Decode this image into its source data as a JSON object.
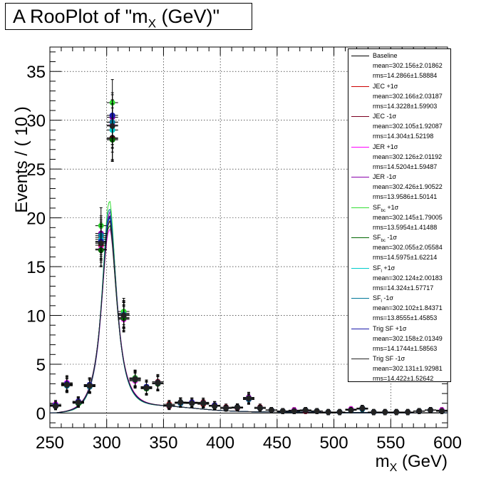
{
  "chart_data": {
    "type": "line",
    "title": "A RooPlot of \"m",
    "title_sub": "X",
    "title_tail": " (GeV)\"",
    "xlabel": "m",
    "xlabel_sub": "X",
    "xlabel_tail": " (GeV)",
    "ylabel": "Events / ( 10 )",
    "xlim": [
      250,
      600
    ],
    "ylim": [
      -1.5,
      37.5
    ],
    "xticks": [
      "250",
      "300",
      "350",
      "400",
      "450",
      "500",
      "550",
      "600"
    ],
    "yticks": [
      "0",
      "5",
      "10",
      "15",
      "20",
      "25",
      "30",
      "35"
    ],
    "grid": true,
    "legend_position": "top-right",
    "legend": [
      {
        "label": "Baseline",
        "mean": "mean=302.156±2.01862",
        "rms": "rms=14.2866±1.58884",
        "color": "#000000"
      },
      {
        "label": "JEC +1σ",
        "mean": "mean=302.166±2.03187",
        "rms": "rms=14.3228±1.59903",
        "color": "#cc0000"
      },
      {
        "label": "JEC -1σ",
        "mean": "mean=302.105±1.92087",
        "rms": "rms=14.304±1.52198",
        "color": "#7a0020"
      },
      {
        "label": "JER +1σ",
        "mean": "mean=302.126±2.01192",
        "rms": "rms=14.5204±1.59487",
        "color": "#ff00ff"
      },
      {
        "label": "JER -1σ",
        "mean": "mean=302.426±1.90522",
        "rms": "rms=13.9586±1.50141",
        "color": "#8800aa"
      },
      {
        "label": "SF",
        "label_sub": "bc",
        "label_tail": " +1σ",
        "mean": "mean=302.145±1.79005",
        "rms": "rms=13.5954±1.41488",
        "color": "#33dd33"
      },
      {
        "label": "SF",
        "label_sub": "bc",
        "label_tail": " -1σ",
        "mean": "mean=302.055±2.05584",
        "rms": "rms=14.5975±1.62214",
        "color": "#006600"
      },
      {
        "label": "SF",
        "label_sub": "l",
        "label_tail": " +1σ",
        "mean": "mean=302.124±2.00183",
        "rms": "rms=14.324±1.57717",
        "color": "#00cccc"
      },
      {
        "label": "SF",
        "label_sub": "l",
        "label_tail": " -1σ",
        "mean": "mean=302.102±1.84371",
        "rms": "rms=13.8555±1.45853",
        "color": "#007799"
      },
      {
        "label": "Trig SF +1σ",
        "mean": "mean=302.158±2.01349",
        "rms": "rms=14.1744±1.58563",
        "color": "#1a1aaa"
      },
      {
        "label": "Trig SF -1σ",
        "mean": "mean=302.131±1.92981",
        "rms": "rms=14.422±1.52642",
        "color": "#222222"
      }
    ],
    "x": [
      255,
      265,
      275,
      285,
      295,
      305,
      315,
      325,
      335,
      345,
      355,
      365,
      375,
      385,
      395,
      405,
      415,
      425,
      435,
      445,
      455,
      465,
      475,
      485,
      495,
      505,
      515,
      525,
      535,
      545,
      555,
      565,
      575,
      585,
      595
    ],
    "series": [
      {
        "color": "#000000",
        "values": [
          0.7,
          2.9,
          1.1,
          2.8,
          17.5,
          28.2,
          10.0,
          3.5,
          2.6,
          3.1,
          0.8,
          1.1,
          1.0,
          1.0,
          0.7,
          0.5,
          0.6,
          1.5,
          0.5,
          0.3,
          0.2,
          0.2,
          0.3,
          0.2,
          0.1,
          0.1,
          0.3,
          0.5,
          0.1,
          0.1,
          0.1,
          0.1,
          0.2,
          0.3,
          0.2
        ],
        "peak": 19.7,
        "mean": 302.156,
        "sigma": 8.2
      },
      {
        "color": "#cc0000",
        "values": [
          0.8,
          3.0,
          1.2,
          2.9,
          18.0,
          29.8,
          9.8,
          3.4,
          2.7,
          3.0,
          0.9,
          1.0,
          1.1,
          0.9,
          0.8,
          0.5,
          0.6,
          1.4,
          0.5,
          0.3,
          0.2,
          0.2,
          0.3,
          0.2,
          0.1,
          0.1,
          0.3,
          0.4,
          0.1,
          0.1,
          0.1,
          0.1,
          0.2,
          0.3,
          0.2
        ],
        "peak": 19.4,
        "mean": 302.166,
        "sigma": 8.3
      },
      {
        "color": "#7a0020",
        "values": [
          0.7,
          2.8,
          1.0,
          2.7,
          17.2,
          28.1,
          10.2,
          3.6,
          2.5,
          3.2,
          0.7,
          1.1,
          1.0,
          1.1,
          0.7,
          0.6,
          0.5,
          1.5,
          0.6,
          0.3,
          0.2,
          0.2,
          0.2,
          0.2,
          0.1,
          0.1,
          0.3,
          0.5,
          0.1,
          0.1,
          0.1,
          0.1,
          0.2,
          0.3,
          0.2
        ],
        "peak": 19.9,
        "mean": 302.105,
        "sigma": 8.1
      },
      {
        "color": "#ff00ff",
        "values": [
          0.9,
          3.1,
          1.2,
          2.9,
          16.8,
          29.5,
          9.6,
          3.3,
          2.7,
          3.0,
          0.8,
          1.1,
          1.1,
          1.0,
          0.8,
          0.5,
          0.6,
          1.4,
          0.5,
          0.3,
          0.2,
          0.3,
          0.3,
          0.2,
          0.1,
          0.1,
          0.4,
          0.5,
          0.1,
          0.1,
          0.1,
          0.1,
          0.2,
          0.3,
          0.3
        ],
        "peak": 18.5,
        "mean": 302.126,
        "sigma": 8.6
      },
      {
        "color": "#8800aa",
        "values": [
          0.7,
          2.9,
          1.1,
          2.8,
          18.4,
          30.3,
          10.1,
          3.5,
          2.6,
          3.1,
          0.8,
          1.0,
          1.0,
          1.0,
          0.7,
          0.5,
          0.6,
          1.6,
          0.5,
          0.3,
          0.2,
          0.2,
          0.3,
          0.2,
          0.1,
          0.1,
          0.3,
          0.5,
          0.1,
          0.1,
          0.1,
          0.1,
          0.2,
          0.3,
          0.2
        ],
        "peak": 20.2,
        "mean": 302.426,
        "sigma": 8.0
      },
      {
        "color": "#33dd33",
        "values": [
          0.8,
          3.0,
          1.1,
          2.9,
          19.2,
          31.8,
          10.4,
          3.6,
          2.7,
          3.1,
          0.8,
          1.1,
          1.0,
          1.0,
          0.7,
          0.5,
          0.6,
          1.5,
          0.5,
          0.3,
          0.2,
          0.2,
          0.3,
          0.2,
          0.1,
          0.1,
          0.3,
          0.5,
          0.1,
          0.1,
          0.1,
          0.1,
          0.2,
          0.3,
          0.2
        ],
        "peak": 21.4,
        "mean": 302.145,
        "sigma": 7.7
      },
      {
        "color": "#006600",
        "values": [
          0.7,
          2.9,
          1.0,
          2.8,
          16.7,
          28.0,
          9.7,
          3.4,
          2.5,
          3.0,
          0.8,
          1.1,
          1.0,
          1.0,
          0.7,
          0.5,
          0.6,
          1.5,
          0.5,
          0.3,
          0.2,
          0.2,
          0.3,
          0.2,
          0.1,
          0.1,
          0.3,
          0.5,
          0.1,
          0.1,
          0.1,
          0.1,
          0.2,
          0.3,
          0.2
        ],
        "peak": 18.9,
        "mean": 302.055,
        "sigma": 8.4
      },
      {
        "color": "#00cccc",
        "values": [
          0.8,
          2.9,
          1.1,
          2.8,
          17.8,
          29.0,
          10.0,
          3.5,
          2.6,
          3.1,
          0.8,
          1.1,
          1.0,
          1.0,
          0.7,
          0.5,
          0.6,
          1.5,
          0.5,
          0.3,
          0.2,
          0.2,
          0.3,
          0.2,
          0.1,
          0.1,
          0.3,
          0.5,
          0.1,
          0.1,
          0.1,
          0.1,
          0.2,
          0.3,
          0.2
        ],
        "peak": 19.6,
        "mean": 302.124,
        "sigma": 8.2
      },
      {
        "color": "#007799",
        "values": [
          0.7,
          2.8,
          1.1,
          2.7,
          18.2,
          29.8,
          10.1,
          3.5,
          2.6,
          3.1,
          0.8,
          1.0,
          1.0,
          1.0,
          0.7,
          0.5,
          0.6,
          1.4,
          0.5,
          0.3,
          0.2,
          0.2,
          0.3,
          0.2,
          0.1,
          0.1,
          0.3,
          0.4,
          0.1,
          0.1,
          0.1,
          0.1,
          0.2,
          0.3,
          0.2
        ],
        "peak": 20.6,
        "mean": 302.102,
        "sigma": 7.9
      },
      {
        "color": "#1a1aaa",
        "values": [
          0.8,
          3.0,
          1.2,
          2.9,
          17.6,
          30.5,
          10.0,
          3.5,
          2.7,
          3.1,
          0.8,
          1.1,
          1.1,
          1.0,
          0.8,
          0.5,
          0.6,
          1.5,
          0.5,
          0.3,
          0.2,
          0.2,
          0.3,
          0.2,
          0.1,
          0.1,
          0.3,
          0.5,
          0.1,
          0.1,
          0.1,
          0.1,
          0.2,
          0.3,
          0.2
        ],
        "peak": 19.8,
        "mean": 302.158,
        "sigma": 8.1
      },
      {
        "color": "#222222",
        "values": [
          0.7,
          2.9,
          1.1,
          2.8,
          17.4,
          29.4,
          10.0,
          3.5,
          2.6,
          3.1,
          0.8,
          1.1,
          1.0,
          1.0,
          0.7,
          0.5,
          0.6,
          1.5,
          0.5,
          0.3,
          0.2,
          0.2,
          0.3,
          0.2,
          0.1,
          0.1,
          0.3,
          0.5,
          0.1,
          0.1,
          0.1,
          0.1,
          0.2,
          0.3,
          0.2
        ],
        "peak": 19.3,
        "mean": 302.131,
        "sigma": 8.3
      }
    ]
  }
}
